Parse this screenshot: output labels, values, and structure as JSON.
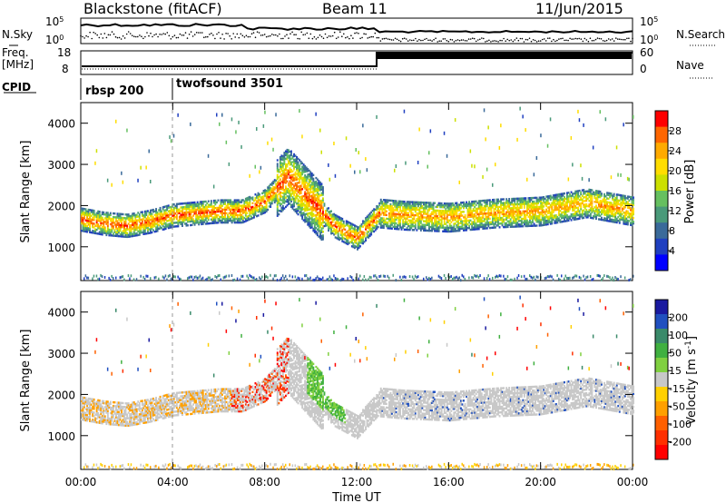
{
  "header": {
    "station": "Blackstone (fitACF)",
    "beam": "Beam 11",
    "date": "11/Jun/2015"
  },
  "left_labels": {
    "nsky": "N.Sky",
    "freq": "Freq.",
    "freq_unit": "[MHz]",
    "cpid": "CPID"
  },
  "right_labels": {
    "nsearch": "N.Search",
    "nave": "Nave"
  },
  "noise_axis": {
    "top": "10^5",
    "bottom": "10^0"
  },
  "freq_axis": {
    "ticks": [
      "18",
      "8"
    ]
  },
  "nave_axis": {
    "ticks": [
      "60",
      "0"
    ]
  },
  "cpid_segments": [
    {
      "label": "rbsp 200",
      "start_hour": 0
    },
    {
      "label": "twofsound 3501",
      "start_hour": 4
    }
  ],
  "chart_data": [
    {
      "type": "heatmap",
      "panel": "power",
      "ylabel": "Slant Range [km]",
      "xlabel": "",
      "xlim": [
        0,
        24
      ],
      "ylim": [
        180,
        4500
      ],
      "yticks": [
        1000,
        2000,
        3000,
        4000
      ],
      "colorbar": {
        "label": "Power [dB]",
        "ticks": [
          "28",
          "24",
          "20",
          "16",
          "12",
          "8",
          "4"
        ],
        "colors": [
          "#ff0000",
          "#ff6600",
          "#ffaa00",
          "#ffdd00",
          "#cce000",
          "#66c060",
          "#4a9a7a",
          "#3a6a9a",
          "#2040c0",
          "#0000ff"
        ]
      },
      "echo_band_center_km": [
        {
          "t": 0,
          "r": 1650
        },
        {
          "t": 1,
          "r": 1550
        },
        {
          "t": 2,
          "r": 1500
        },
        {
          "t": 3,
          "r": 1600
        },
        {
          "t": 4,
          "r": 1750
        },
        {
          "t": 5,
          "r": 1800
        },
        {
          "t": 6,
          "r": 1850
        },
        {
          "t": 7,
          "r": 1850
        },
        {
          "t": 8,
          "r": 2100
        },
        {
          "t": 9,
          "r": 2700
        },
        {
          "t": 10,
          "r": 2100
        },
        {
          "t": 11,
          "r": 1500
        },
        {
          "t": 12,
          "r": 1200
        },
        {
          "t": 13,
          "r": 1800
        },
        {
          "t": 14,
          "r": 1750
        },
        {
          "t": 16,
          "r": 1700
        },
        {
          "t": 18,
          "r": 1800
        },
        {
          "t": 20,
          "r": 1850
        },
        {
          "t": 22,
          "r": 2050
        },
        {
          "t": 24,
          "r": 1850
        }
      ]
    },
    {
      "type": "heatmap",
      "panel": "velocity",
      "ylabel": "Slant Range [km]",
      "xlabel": "Time UT",
      "xlim": [
        0,
        24
      ],
      "ylim": [
        180,
        4500
      ],
      "yticks": [
        1000,
        2000,
        3000,
        4000
      ],
      "xticks": [
        "00:00",
        "04:00",
        "08:00",
        "12:00",
        "16:00",
        "20:00",
        "00:00"
      ],
      "colorbar": {
        "label": "Velocity [m s^-1]",
        "ticks": [
          "200",
          "100",
          "50",
          "15",
          "-15",
          "-50",
          "-100",
          "-200"
        ],
        "colors": [
          "#1a1aa0",
          "#2050c0",
          "#3a8a6a",
          "#40b040",
          "#80d040",
          "#c8c8c8",
          "#ffd000",
          "#ffa000",
          "#ff6000",
          "#ff3000",
          "#ff0000"
        ]
      }
    }
  ]
}
